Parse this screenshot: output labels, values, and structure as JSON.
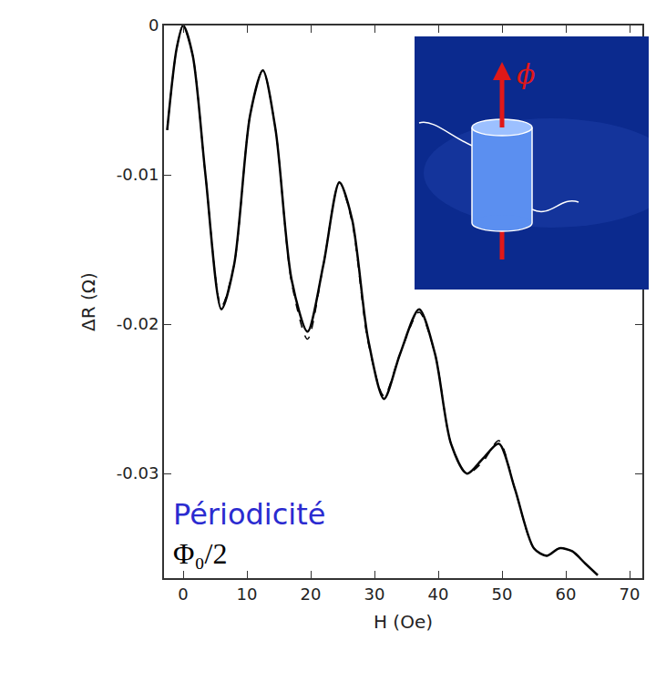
{
  "chart_data": {
    "type": "line",
    "xlabel": "H (Oe)",
    "ylabel": "ΔR (Ω)",
    "x": [
      -2.5,
      -1,
      0,
      1.5,
      3.5,
      6,
      8,
      10.5,
      12.5,
      14.5,
      17,
      19.5,
      22,
      24.5,
      26.5,
      29,
      31.5,
      34,
      37,
      39.5,
      42,
      44.5,
      47,
      49.5,
      52,
      55,
      57,
      59,
      61,
      63,
      65
    ],
    "series": [
      {
        "color": "#000000",
        "line_style": "solid",
        "values": [
          -0.007,
          -0.0015,
          0,
          -0.002,
          -0.01,
          -0.019,
          -0.016,
          -0.006,
          -0.003,
          -0.007,
          -0.017,
          -0.0205,
          -0.016,
          -0.0105,
          -0.013,
          -0.021,
          -0.025,
          -0.022,
          -0.019,
          -0.022,
          -0.028,
          -0.03,
          -0.029,
          -0.028,
          -0.031,
          -0.035,
          -0.0355,
          -0.035,
          -0.0352,
          -0.036,
          -0.0368
        ]
      },
      {
        "color": "#000000",
        "line_style": "dashed",
        "values": [
          -0.007,
          -0.0015,
          0,
          -0.002,
          -0.01,
          -0.0188,
          -0.016,
          -0.006,
          -0.003,
          -0.007,
          -0.0172,
          -0.021,
          -0.016,
          -0.0105,
          -0.0132,
          -0.0212,
          -0.0248,
          -0.022,
          -0.0192,
          -0.022,
          -0.028,
          -0.03,
          -0.0292,
          -0.0278,
          -0.031,
          -0.035,
          -0.0355,
          -0.035,
          -0.0352,
          -0.036,
          -0.0368
        ]
      }
    ],
    "xlim": [
      -3,
      72
    ],
    "ylim": [
      -0.037,
      0
    ],
    "xticks": [
      0,
      10,
      20,
      30,
      40,
      50,
      60,
      70
    ],
    "yticks": [
      0,
      -0.01,
      -0.02,
      -0.03
    ],
    "grid": false,
    "annotations": [
      {
        "text": "Périodicité",
        "color": "#2b2bd0"
      },
      {
        "text": "Φ₀/2",
        "color": "#000000"
      },
      {
        "text": "ϕ",
        "color": "#e01818"
      }
    ]
  }
}
